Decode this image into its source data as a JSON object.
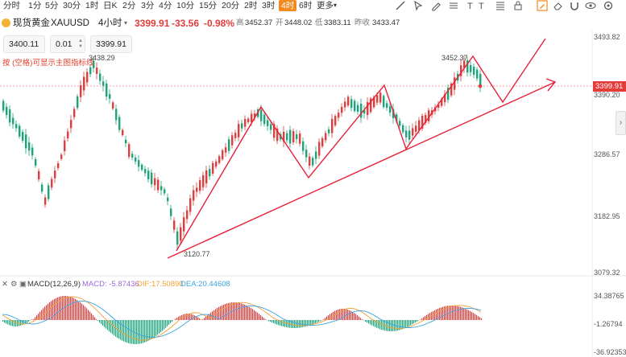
{
  "toolbar": {
    "timeframes": [
      "分时",
      "1分",
      "5分",
      "30分",
      "1时",
      "日K",
      "2分",
      "3分",
      "4分",
      "10分",
      "15分",
      "20分",
      "2时",
      "3时",
      "4时",
      "6时",
      "更多"
    ],
    "active_timeframe": "4时",
    "tools": [
      "trend-line-icon",
      "cursor-icon",
      "pencil-icon",
      "horizontal-lines-icon",
      "text-icon",
      "text-bold-icon",
      "fibonacci-icon",
      "lock-icon",
      "eraser-icon",
      "magnet-icon",
      "eye-icon",
      "settings-icon"
    ]
  },
  "symbol": {
    "name": "现货黄金",
    "code": "XAUUSD",
    "interval": "4小时",
    "price": "3399.91",
    "change": "-33.56",
    "change_pct": "-0.98%",
    "high_label": "高",
    "high": "3452.37",
    "open_label": "开",
    "open": "3448.02",
    "low_label": "低",
    "low": "3383.11",
    "prev_label": "昨收",
    "prev_close": "3433.47"
  },
  "order_box": {
    "price_left": "3400.11",
    "lot": "0.01",
    "price_right": "3399.91"
  },
  "hint": "按 (空格)可显示主图指标线",
  "price_axis": {
    "labels": [
      "3493.82",
      "3390.20",
      "3286.57",
      "3182.95",
      "3079.32"
    ],
    "current": "3399.91"
  },
  "annotations": {
    "high_left": "3438.29",
    "low": "3120.77",
    "high_right": "3452.37"
  },
  "macd": {
    "title": "MACD(12,26,9)",
    "macd_label": "MACD: -5.87436",
    "dif_label": "DIF:17.50890",
    "dea_label": "DEA:20.44608",
    "axis": [
      "34.38765",
      "-1.26794",
      "-36.92353"
    ],
    "header_icons": [
      "collapse-icon",
      "settings-icon",
      "visibility-icon"
    ]
  },
  "colors": {
    "up": "#e53b3b",
    "down": "#1aa67a",
    "accent": "#f28a1f",
    "trend": "#e8203a",
    "macd_line": "#9a6bd8",
    "dif": "#f0a035",
    "dea": "#3aa3e0"
  }
}
